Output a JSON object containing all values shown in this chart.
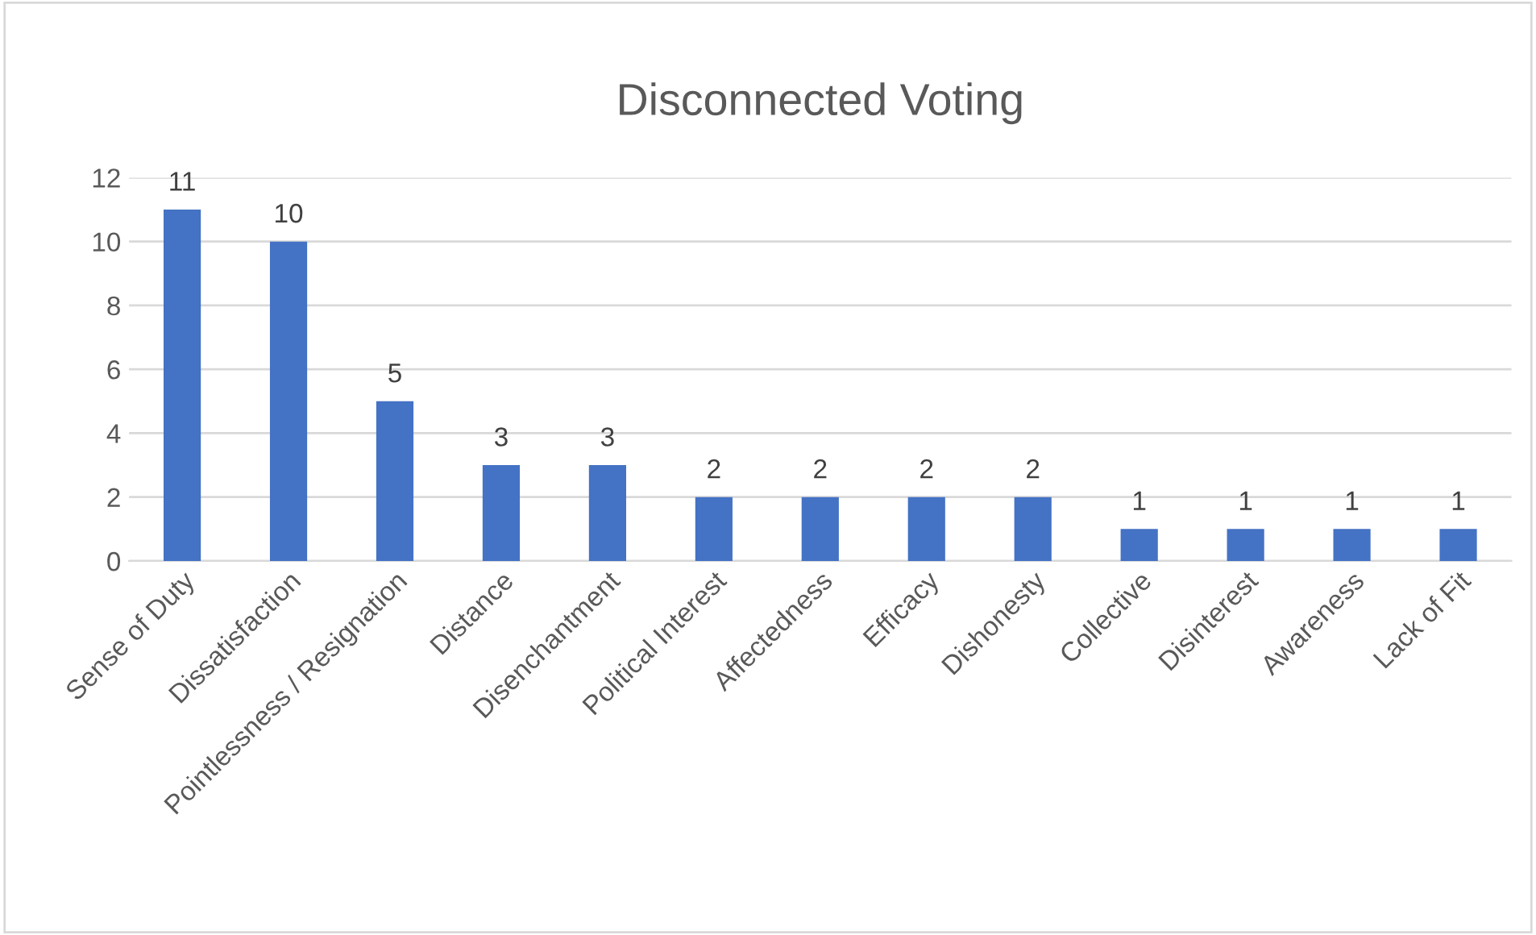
{
  "chart_data": {
    "type": "bar",
    "title": "Disconnected Voting",
    "categories": [
      "Sense of Duty",
      "Dissatisfaction",
      "Pointlessness / Resignation",
      "Distance",
      "Disenchantment",
      "Political Interest",
      "Affectedness",
      "Efficacy",
      "Dishonesty",
      "Collective",
      "Disinterest",
      "Awareness",
      "Lack of Fit"
    ],
    "values": [
      11,
      10,
      5,
      3,
      3,
      2,
      2,
      2,
      2,
      1,
      1,
      1,
      1
    ],
    "color": "#4472c4",
    "ylim": [
      0,
      12
    ],
    "yticks": [
      0,
      2,
      4,
      6,
      8,
      10,
      12
    ],
    "grid": "y",
    "data_labels": true
  }
}
